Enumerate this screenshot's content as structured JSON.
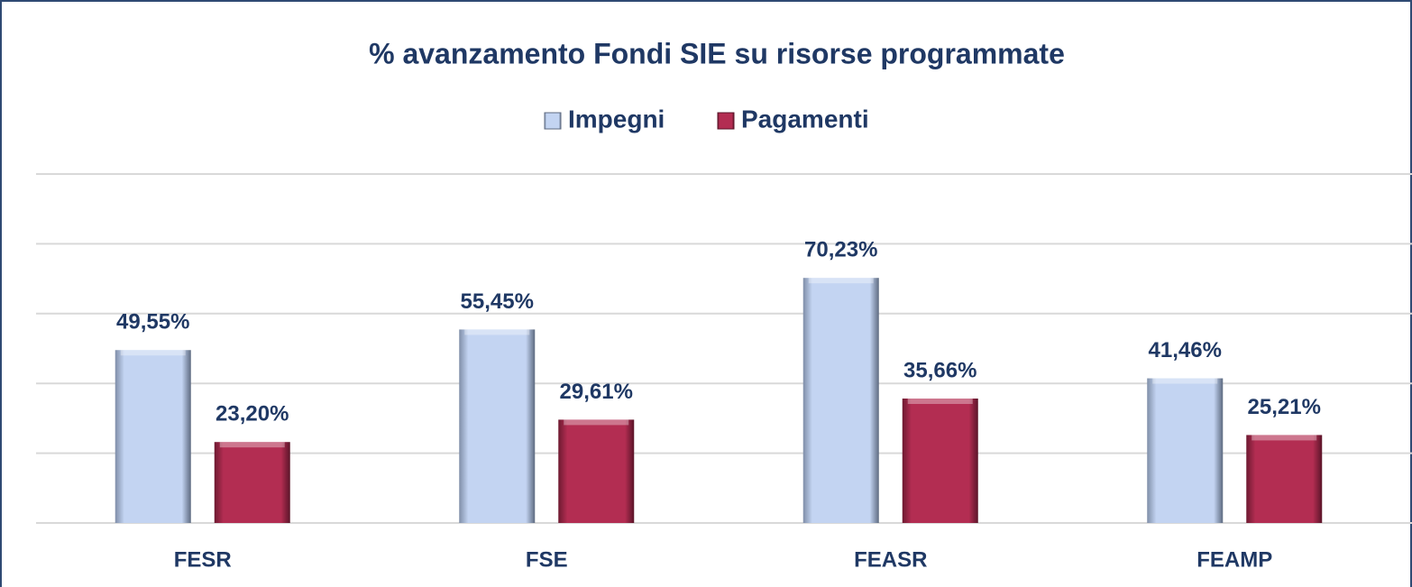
{
  "chart_data": {
    "type": "bar",
    "title": "% avanzamento Fondi SIE su risorse programmate",
    "categories": [
      "FESR",
      "FSE",
      "FEASR",
      "FEAMP"
    ],
    "series": [
      {
        "name": "Impegni",
        "color": "#c3d4f2",
        "values": [
          49.55,
          55.45,
          70.23,
          41.46
        ],
        "value_labels": [
          "49,55%",
          "55,45%",
          "70,23%",
          "41,46%"
        ]
      },
      {
        "name": "Pagamenti",
        "color": "#b32d52",
        "values": [
          23.2,
          29.61,
          35.66,
          25.21
        ],
        "value_labels": [
          "23,20%",
          "29,61%",
          "35,66%",
          "25,21%"
        ]
      }
    ],
    "ylim": [
      0,
      100
    ],
    "yticks": [
      0,
      20,
      40,
      60,
      80,
      100
    ],
    "grid": true,
    "legend": "top"
  }
}
